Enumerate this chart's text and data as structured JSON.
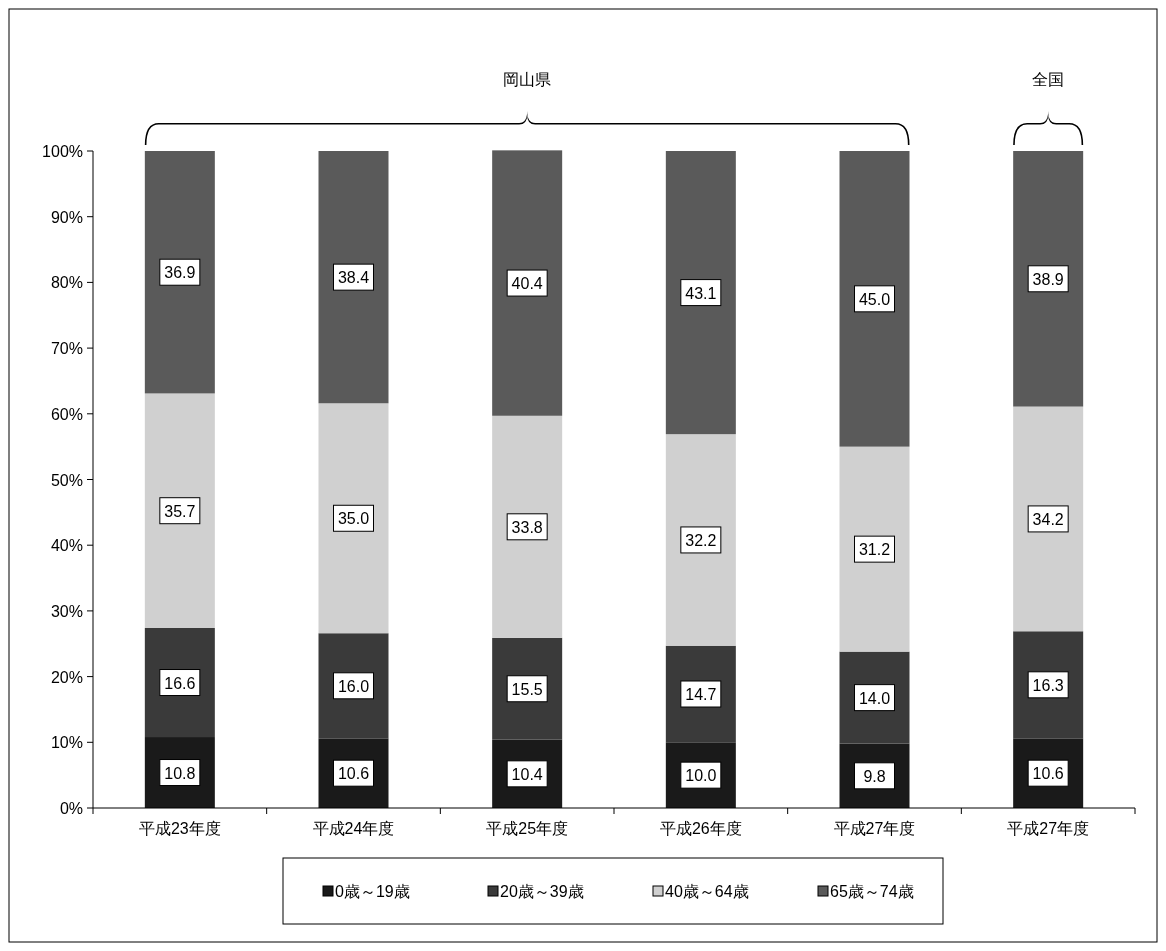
{
  "chart_data": {
    "type": "bar",
    "stacked": true,
    "categories": [
      "平成23年度",
      "平成24年度",
      "平成25年度",
      "平成26年度",
      "平成27年度",
      "平成27年度"
    ],
    "series": [
      {
        "name": "0歳～19歳",
        "color": "#1a1a1a",
        "values": [
          10.8,
          10.6,
          10.4,
          10.0,
          9.8,
          10.6
        ],
        "value_labels": [
          "10.8",
          "10.6",
          "10.4",
          "10.0",
          "9.8",
          "10.6"
        ]
      },
      {
        "name": "20歳～39歳",
        "color": "#3a3a3a",
        "values": [
          16.6,
          16.0,
          15.5,
          14.7,
          14.0,
          16.3
        ],
        "value_labels": [
          "16.6",
          "16.0",
          "15.5",
          "14.7",
          "14.0",
          "16.3"
        ]
      },
      {
        "name": "40歳～64歳",
        "color": "#d0d0d0",
        "values": [
          35.7,
          35.0,
          33.8,
          32.2,
          31.2,
          34.2
        ],
        "value_labels": [
          "35.7",
          "35.0",
          "33.8",
          "32.2",
          "31.2",
          "34.2"
        ]
      },
      {
        "name": "65歳～74歳",
        "color": "#5a5a5a",
        "values": [
          36.9,
          38.4,
          40.4,
          43.1,
          45.0,
          38.9
        ],
        "value_labels": [
          "36.9",
          "38.4",
          "40.4",
          "43.1",
          "45.0",
          "38.9"
        ]
      }
    ],
    "ylim": [
      0,
      100
    ],
    "yticks": [
      {
        "value": 0,
        "label": "0%"
      },
      {
        "value": 10,
        "label": "10%"
      },
      {
        "value": 20,
        "label": "20%"
      },
      {
        "value": 30,
        "label": "30%"
      },
      {
        "value": 40,
        "label": "40%"
      },
      {
        "value": 50,
        "label": "50%"
      },
      {
        "value": 60,
        "label": "60%"
      },
      {
        "value": 70,
        "label": "70%"
      },
      {
        "value": 80,
        "label": "80%"
      },
      {
        "value": 90,
        "label": "90%"
      },
      {
        "value": 100,
        "label": "100%"
      }
    ],
    "grid": false,
    "legend": "bottom",
    "annotations": [
      "岡山県",
      "全国"
    ]
  }
}
